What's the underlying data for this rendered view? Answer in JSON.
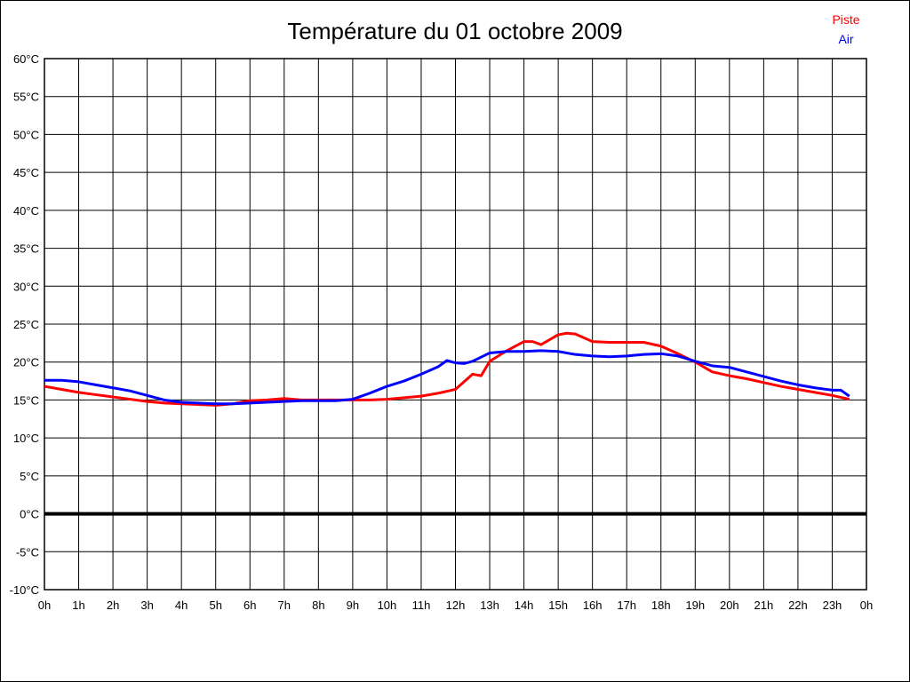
{
  "page": {
    "title": "Température du 01 octobre 2009"
  },
  "legend": {
    "position": "top-right",
    "items": [
      {
        "label": "Piste",
        "color": "#ff0000"
      },
      {
        "label": "Air",
        "color": "#0000ff"
      }
    ]
  },
  "chart_data": {
    "type": "line",
    "title": "Température du 01 octobre 2009",
    "xlabel": "",
    "ylabel": "",
    "x_unit": "hour of day",
    "y_unit": "°C",
    "xlim": [
      0,
      24
    ],
    "ylim": [
      -10,
      60
    ],
    "grid": true,
    "legend_position": "top-right",
    "x_tick_values": [
      0,
      1,
      2,
      3,
      4,
      5,
      6,
      7,
      8,
      9,
      10,
      11,
      12,
      13,
      14,
      15,
      16,
      17,
      18,
      19,
      20,
      21,
      22,
      23,
      24
    ],
    "x_tick_labels": [
      "0h",
      "1h",
      "2h",
      "3h",
      "4h",
      "5h",
      "6h",
      "7h",
      "8h",
      "9h",
      "10h",
      "11h",
      "12h",
      "13h",
      "14h",
      "15h",
      "16h",
      "17h",
      "18h",
      "19h",
      "20h",
      "21h",
      "22h",
      "23h",
      "0h"
    ],
    "y_tick_values": [
      60,
      55,
      50,
      45,
      40,
      35,
      30,
      25,
      20,
      15,
      10,
      5,
      0,
      -5,
      -10
    ],
    "y_tick_labels": [
      "60°C",
      "55°C",
      "50°C",
      "45°C",
      "40°C",
      "35°C",
      "30°C",
      "25°C",
      "20°C",
      "15°C",
      "10°C",
      "5°C",
      "0°C",
      "-5°C",
      "-10°C"
    ],
    "zero_line_value": 0,
    "series": [
      {
        "name": "Piste",
        "color": "#ff0000",
        "points": [
          [
            0,
            16.8
          ],
          [
            0.5,
            16.4
          ],
          [
            1,
            16.0
          ],
          [
            1.5,
            15.7
          ],
          [
            2,
            15.4
          ],
          [
            2.5,
            15.1
          ],
          [
            3,
            14.8
          ],
          [
            3.5,
            14.6
          ],
          [
            4,
            14.5
          ],
          [
            4.5,
            14.4
          ],
          [
            5,
            14.3
          ],
          [
            5.5,
            14.5
          ],
          [
            6,
            14.9
          ],
          [
            6.5,
            15.0
          ],
          [
            7,
            15.2
          ],
          [
            7.5,
            15.0
          ],
          [
            8,
            15.0
          ],
          [
            8.5,
            15.0
          ],
          [
            9,
            15.0
          ],
          [
            9.5,
            15.0
          ],
          [
            10,
            15.1
          ],
          [
            10.5,
            15.3
          ],
          [
            11,
            15.5
          ],
          [
            11.5,
            15.9
          ],
          [
            12,
            16.4
          ],
          [
            12.5,
            18.4
          ],
          [
            12.75,
            18.2
          ],
          [
            13,
            20.1
          ],
          [
            13.5,
            21.5
          ],
          [
            14,
            22.7
          ],
          [
            14.25,
            22.7
          ],
          [
            14.5,
            22.3
          ],
          [
            15,
            23.6
          ],
          [
            15.25,
            23.8
          ],
          [
            15.5,
            23.7
          ],
          [
            16,
            22.7
          ],
          [
            16.5,
            22.6
          ],
          [
            17,
            22.6
          ],
          [
            17.5,
            22.6
          ],
          [
            18,
            22.1
          ],
          [
            18.5,
            21.1
          ],
          [
            19,
            20.0
          ],
          [
            19.5,
            18.7
          ],
          [
            20,
            18.2
          ],
          [
            20.5,
            17.8
          ],
          [
            21,
            17.3
          ],
          [
            21.5,
            16.8
          ],
          [
            22,
            16.4
          ],
          [
            22.5,
            16.0
          ],
          [
            23,
            15.6
          ],
          [
            23.5,
            15.1
          ]
        ]
      },
      {
        "name": "Air",
        "color": "#0000ff",
        "points": [
          [
            0,
            17.6
          ],
          [
            0.5,
            17.6
          ],
          [
            1,
            17.4
          ],
          [
            1.5,
            17.0
          ],
          [
            2,
            16.6
          ],
          [
            2.5,
            16.2
          ],
          [
            3,
            15.6
          ],
          [
            3.5,
            15.0
          ],
          [
            4,
            14.7
          ],
          [
            4.5,
            14.6
          ],
          [
            5,
            14.5
          ],
          [
            5.5,
            14.5
          ],
          [
            6,
            14.6
          ],
          [
            6.5,
            14.7
          ],
          [
            7,
            14.8
          ],
          [
            7.5,
            14.9
          ],
          [
            8,
            14.9
          ],
          [
            8.5,
            14.9
          ],
          [
            9,
            15.1
          ],
          [
            9.5,
            15.9
          ],
          [
            10,
            16.8
          ],
          [
            10.5,
            17.5
          ],
          [
            11,
            18.4
          ],
          [
            11.5,
            19.4
          ],
          [
            11.75,
            20.2
          ],
          [
            12,
            19.9
          ],
          [
            12.25,
            19.8
          ],
          [
            12.5,
            20.1
          ],
          [
            13,
            21.2
          ],
          [
            13.5,
            21.4
          ],
          [
            14,
            21.4
          ],
          [
            14.5,
            21.5
          ],
          [
            15,
            21.4
          ],
          [
            15.5,
            21.0
          ],
          [
            16,
            20.8
          ],
          [
            16.5,
            20.7
          ],
          [
            17,
            20.8
          ],
          [
            17.5,
            21.0
          ],
          [
            18,
            21.1
          ],
          [
            18.5,
            20.8
          ],
          [
            19,
            20.1
          ],
          [
            19.5,
            19.5
          ],
          [
            20,
            19.3
          ],
          [
            20.5,
            18.7
          ],
          [
            21,
            18.1
          ],
          [
            21.5,
            17.5
          ],
          [
            22,
            17.0
          ],
          [
            22.5,
            16.6
          ],
          [
            23,
            16.3
          ],
          [
            23.25,
            16.3
          ],
          [
            23.5,
            15.5
          ]
        ]
      }
    ]
  }
}
